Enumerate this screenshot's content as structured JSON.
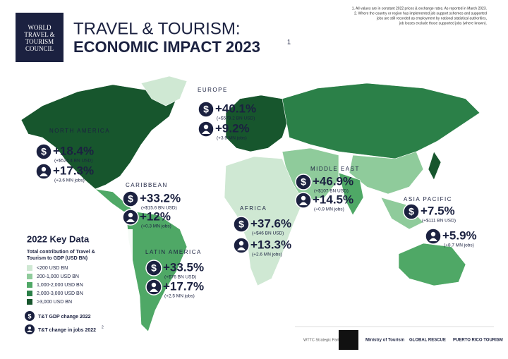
{
  "header": {
    "logo": "WORLD TRAVEL & TOURISM COUNCIL",
    "title_line1": "TRAVEL & TOURISM:",
    "title_line2": "ECONOMIC IMPACT 2023",
    "title_note": "1"
  },
  "notes": [
    "1. All values are in constant 2022 prices & exchange rates. As reported in March 2023.",
    "2. Where the country or region has implemented job support schemes and supported",
    "jobs are still recorded as employment by national statistical authorities,",
    "job losses exclude those supported jobs (where known)."
  ],
  "regions": [
    {
      "name": "EUROPE",
      "gdp_change": "+40.1%",
      "gdp_value": "(+$579.2 BN USD)",
      "jobs_change": "+9.2%",
      "jobs_value": "(+3.9 MN jobs)"
    },
    {
      "name": "NORTH AMERICA",
      "gdp_change": "+18.4%",
      "gdp_value": "(+$524.4 BN USD)",
      "jobs_change": "+17.3%",
      "jobs_value": "(+3.6 MN jobs)"
    },
    {
      "name": "CARIBBEAN",
      "gdp_change": "+33.2%",
      "gdp_value": "(+$15.6 BN USD)",
      "jobs_change": "+12%",
      "jobs_value": "(+0.3 MN jobs)"
    },
    {
      "name": "LATIN AMERICA",
      "gdp_change": "+33.5%",
      "gdp_value": "(+$76 BN USD)",
      "jobs_change": "+17.7%",
      "jobs_value": "(+2.5 MN jobs)"
    },
    {
      "name": "AFRICA",
      "gdp_change": "+37.6%",
      "gdp_value": "(+$46 BN USD)",
      "jobs_change": "+13.3%",
      "jobs_value": "(+2.6 MN jobs)"
    },
    {
      "name": "MIDDLE EAST",
      "gdp_change": "+46.9%",
      "gdp_value": "(+$107 BN USD)",
      "jobs_change": "+14.5%",
      "jobs_value": "(+0.9 MN jobs)"
    },
    {
      "name": "ASIA PACIFIC",
      "gdp_change": "+7.5%",
      "gdp_value": "(+$111 BN USD)",
      "jobs_change": "+5.9%",
      "jobs_value": "(+8.7 MN jobs)"
    }
  ],
  "legend": {
    "title": "2022 Key Data",
    "subtitle_line1": "Total contribution of Travel &",
    "subtitle_line2": "Tourism to GDP (USD BN)",
    "items": [
      {
        "label": "<200 USD BN",
        "color": "#cfe8d3"
      },
      {
        "label": "200-1,000 USD BN",
        "color": "#8fcb9b"
      },
      {
        "label": "1,000-2,000 USD BN",
        "color": "#4fa866"
      },
      {
        "label": "2,000-3,000 USD BN",
        "color": "#2b8048"
      },
      {
        "label": ">3,000 USD BN",
        "color": "#17562d"
      }
    ],
    "gdp_icon_label": "T&T GDP change 2022",
    "jobs_icon_label": "T&T change in jobs 2022",
    "jobs_icon_note": "2"
  },
  "partners": {
    "label": "WTTC Strategic Partners",
    "names": [
      "Ministry of Tourism",
      "GLOBAL RESCUE",
      "PUERTO RICO TOURISM"
    ]
  }
}
